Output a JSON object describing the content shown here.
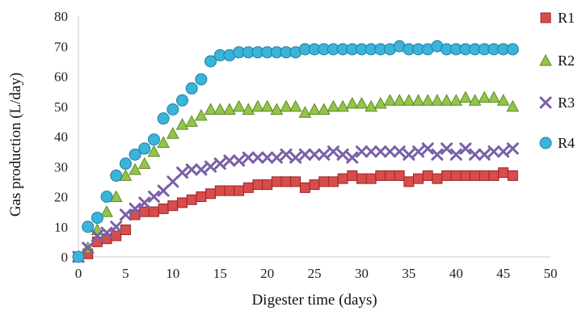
{
  "chart_data": {
    "type": "scatter",
    "xlabel": "Digester time (days)",
    "ylabel": "Gas production (L/day)",
    "xlim": [
      0,
      50
    ],
    "ylim": [
      0,
      80
    ],
    "xticks": [
      "0",
      "5",
      "10",
      "15",
      "20",
      "25",
      "30",
      "35",
      "40",
      "45",
      "50"
    ],
    "yticks": [
      "0",
      "10",
      "20",
      "30",
      "40",
      "50",
      "60",
      "70",
      "80"
    ],
    "grid": false,
    "legend_position": "right",
    "x": [
      0,
      1,
      2,
      3,
      4,
      5,
      6,
      7,
      8,
      9,
      10,
      11,
      12,
      13,
      14,
      15,
      16,
      17,
      18,
      19,
      20,
      21,
      22,
      23,
      24,
      25,
      26,
      27,
      28,
      29,
      30,
      31,
      32,
      33,
      34,
      35,
      36,
      37,
      38,
      39,
      40,
      41,
      42,
      43,
      44,
      45,
      46
    ],
    "series": [
      {
        "name": "R1",
        "marker": "square",
        "color": "#d94c4c",
        "stroke": "#9c2424",
        "values": [
          0,
          1,
          5,
          6,
          7,
          9,
          14,
          15,
          15,
          16,
          17,
          18,
          19,
          20,
          21,
          22,
          22,
          22,
          23,
          24,
          24,
          25,
          25,
          25,
          23,
          24,
          25,
          25,
          26,
          27,
          26,
          26,
          27,
          27,
          27,
          25,
          26,
          27,
          26,
          27,
          27,
          27,
          27,
          27,
          27,
          28,
          27
        ]
      },
      {
        "name": "R2",
        "marker": "triangle",
        "color": "#93c44a",
        "stroke": "#5e8a25",
        "values": [
          0,
          3,
          9,
          15,
          20,
          27,
          29,
          31,
          35,
          38,
          41,
          44,
          45,
          47,
          49,
          49,
          49,
          50,
          49,
          50,
          50,
          49,
          50,
          50,
          48,
          49,
          49,
          50,
          50,
          51,
          51,
          50,
          51,
          52,
          52,
          52,
          52,
          52,
          52,
          52,
          52,
          53,
          52,
          53,
          53,
          52,
          50
        ]
      },
      {
        "name": "R3",
        "marker": "x",
        "color": "#7a5fa8",
        "stroke": "#6a4f98",
        "values": [
          0,
          3,
          7,
          8,
          10,
          14,
          16,
          18,
          20,
          22,
          25,
          28,
          29,
          29,
          30,
          31,
          32,
          32,
          33,
          33,
          33,
          33,
          34,
          33,
          34,
          34,
          34,
          35,
          34,
          33,
          35,
          35,
          35,
          35,
          35,
          34,
          35,
          36,
          34,
          36,
          34,
          36,
          34,
          34,
          35,
          35,
          36
        ]
      },
      {
        "name": "R4",
        "marker": "circle",
        "color": "#3ab4d8",
        "stroke": "#1f7ea4",
        "values": [
          0,
          10,
          13,
          20,
          27,
          31,
          34,
          36,
          39,
          46,
          49,
          52,
          56,
          59,
          65,
          67,
          67,
          68,
          68,
          68,
          68,
          68,
          68,
          68,
          69,
          69,
          69,
          69,
          69,
          69,
          69,
          69,
          69,
          69,
          70,
          69,
          69,
          69,
          70,
          69,
          69,
          69,
          69,
          69,
          69,
          69,
          69
        ]
      }
    ]
  }
}
